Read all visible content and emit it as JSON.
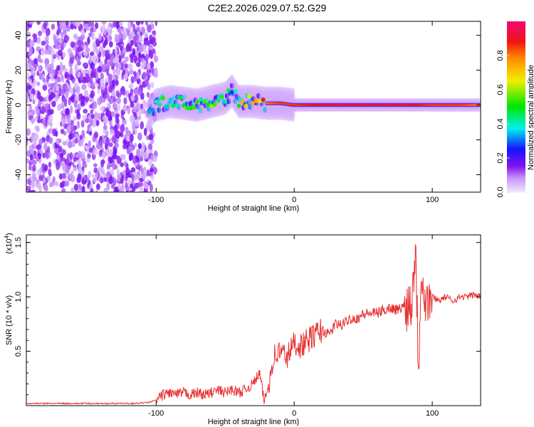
{
  "title": "C2E2.2026.029.07.52.G29",
  "chart_data": [
    {
      "type": "heatmap",
      "xlabel": "Height of straight line (km)",
      "ylabel": "Frequency (Hz)",
      "xlim": [
        -194,
        135
      ],
      "ylim": [
        -50,
        48
      ],
      "xticks": [
        -100,
        0,
        100
      ],
      "xtick_labels": [
        "-100",
        "0",
        "100"
      ],
      "yticks": [
        40,
        20,
        0,
        -20,
        -40
      ],
      "ytick_labels": [
        "40",
        "20",
        "0",
        "-20",
        "-40"
      ],
      "colorbar": {
        "label": "Normalized spectral amplitude",
        "range": [
          0,
          1
        ],
        "ticks": [
          0.0,
          0.2,
          0.4,
          0.6,
          0.8
        ],
        "tick_labels": [
          "0.0",
          "0.2",
          "0.4",
          "0.6",
          "0.8"
        ]
      },
      "noise_region_km": [
        -194,
        -100
      ],
      "ridge": {
        "km": [
          -105,
          -100,
          -90,
          -80,
          -70,
          -60,
          -50,
          -45,
          -40,
          -30,
          -20,
          -10,
          0,
          20,
          40,
          60,
          80,
          100,
          120,
          135
        ],
        "freq_hz": [
          -4,
          0,
          2,
          1,
          0,
          2,
          4,
          8,
          2,
          2,
          1,
          1,
          0,
          0,
          0,
          0,
          0,
          0,
          0,
          0
        ],
        "amplitude": [
          0.3,
          0.4,
          0.45,
          0.45,
          0.45,
          0.5,
          0.45,
          0.35,
          0.6,
          0.75,
          0.8,
          0.85,
          0.85,
          0.9,
          0.9,
          0.9,
          0.9,
          0.85,
          0.85,
          0.8
        ]
      }
    },
    {
      "type": "line",
      "xlabel": "Height of straight line (km)",
      "ylabel": "SNR (10 * v/v)",
      "y_scale_label": "(x10",
      "y_scale_exp": "4",
      "xlim": [
        -194,
        135
      ],
      "ylim": [
        0,
        1.57
      ],
      "xticks": [
        -100,
        0,
        100
      ],
      "xtick_labels": [
        "-100",
        "0",
        "100"
      ],
      "yticks": [
        0.5,
        1.0,
        1.5
      ],
      "ytick_labels": [
        "0.5",
        "1.0",
        "1.5"
      ],
      "series": [
        {
          "name": "SNR",
          "color": "#e83030",
          "x": [
            -194,
            -185,
            -175,
            -165,
            -155,
            -145,
            -135,
            -125,
            -115,
            -105,
            -100,
            -95,
            -90,
            -85,
            -80,
            -75,
            -70,
            -65,
            -60,
            -55,
            -50,
            -45,
            -40,
            -35,
            -30,
            -25,
            -22,
            -20,
            -15,
            -10,
            -5,
            0,
            5,
            10,
            15,
            20,
            25,
            30,
            35,
            40,
            45,
            50,
            55,
            60,
            65,
            70,
            75,
            80,
            85,
            88,
            90,
            92,
            95,
            100,
            105,
            110,
            115,
            120,
            125,
            130,
            135
          ],
          "y": [
            0.02,
            0.02,
            0.02,
            0.02,
            0.02,
            0.02,
            0.02,
            0.02,
            0.02,
            0.03,
            0.05,
            0.1,
            0.12,
            0.1,
            0.12,
            0.1,
            0.12,
            0.1,
            0.12,
            0.14,
            0.12,
            0.15,
            0.12,
            0.15,
            0.2,
            0.3,
            0.05,
            0.1,
            0.45,
            0.5,
            0.45,
            0.58,
            0.55,
            0.6,
            0.65,
            0.7,
            0.65,
            0.75,
            0.74,
            0.8,
            0.8,
            0.84,
            0.85,
            0.85,
            0.88,
            0.9,
            0.88,
            0.92,
            0.95,
            1.5,
            0.3,
            1.3,
            0.95,
            1.0,
            0.97,
            1.0,
            0.96,
            1.0,
            1.0,
            1.02,
            1.0
          ]
        }
      ]
    }
  ]
}
